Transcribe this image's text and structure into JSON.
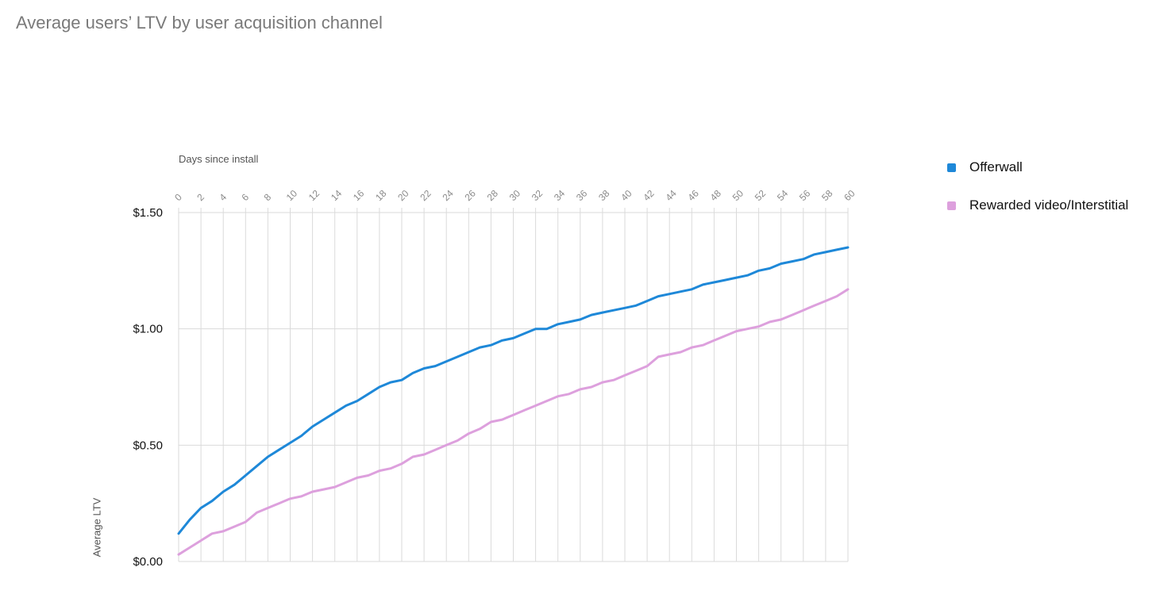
{
  "title": "Average users’ LTV by user acquisition channel",
  "chart_data": {
    "type": "line",
    "title": "Average users’ LTV by user acquisition channel",
    "xlabel": "Days since install",
    "ylabel": "Average LTV",
    "xlim": [
      0,
      60
    ],
    "ylim": [
      0,
      1.5
    ],
    "x_tick_values": [
      0,
      2,
      4,
      6,
      8,
      10,
      12,
      14,
      16,
      18,
      20,
      22,
      24,
      26,
      28,
      30,
      32,
      34,
      36,
      38,
      40,
      42,
      44,
      46,
      48,
      50,
      52,
      54,
      56,
      58,
      60
    ],
    "x_tick_labels": [
      "0",
      "2",
      "4",
      "6",
      "8",
      "10",
      "12",
      "14",
      "16",
      "18",
      "20",
      "22",
      "24",
      "26",
      "28",
      "30",
      "32",
      "34",
      "36",
      "38",
      "40",
      "42",
      "44",
      "46",
      "48",
      "50",
      "52",
      "54",
      "56",
      "58",
      "60"
    ],
    "y_tick_values": [
      0,
      0.5,
      1.0,
      1.5
    ],
    "y_tick_labels": [
      "$0.00",
      "$0.50",
      "$1.00",
      "$1.50"
    ],
    "x_axis_position": "top",
    "grid": true,
    "legend_position": "right",
    "x": [
      0,
      1,
      2,
      3,
      4,
      5,
      6,
      7,
      8,
      9,
      10,
      11,
      12,
      13,
      14,
      15,
      16,
      17,
      18,
      19,
      20,
      21,
      22,
      23,
      24,
      25,
      26,
      27,
      28,
      29,
      30,
      31,
      32,
      33,
      34,
      35,
      36,
      37,
      38,
      39,
      40,
      41,
      42,
      43,
      44,
      45,
      46,
      47,
      48,
      49,
      50,
      51,
      52,
      53,
      54,
      55,
      56,
      57,
      58,
      59,
      60
    ],
    "series": [
      {
        "name": "Offerwall",
        "color": "#1E88D8",
        "values": [
          0.12,
          0.18,
          0.23,
          0.26,
          0.3,
          0.33,
          0.37,
          0.41,
          0.45,
          0.48,
          0.51,
          0.54,
          0.58,
          0.61,
          0.64,
          0.67,
          0.69,
          0.72,
          0.75,
          0.77,
          0.78,
          0.81,
          0.83,
          0.84,
          0.86,
          0.88,
          0.9,
          0.92,
          0.93,
          0.95,
          0.96,
          0.98,
          1.0,
          1.0,
          1.02,
          1.03,
          1.04,
          1.06,
          1.07,
          1.08,
          1.09,
          1.1,
          1.12,
          1.14,
          1.15,
          1.16,
          1.17,
          1.19,
          1.2,
          1.21,
          1.22,
          1.23,
          1.25,
          1.26,
          1.28,
          1.29,
          1.3,
          1.32,
          1.33,
          1.34,
          1.35
        ]
      },
      {
        "name": "Rewarded video/Interstitial",
        "color": "#DDA0DD",
        "values": [
          0.03,
          0.06,
          0.09,
          0.12,
          0.13,
          0.15,
          0.17,
          0.21,
          0.23,
          0.25,
          0.27,
          0.28,
          0.3,
          0.31,
          0.32,
          0.34,
          0.36,
          0.37,
          0.39,
          0.4,
          0.42,
          0.45,
          0.46,
          0.48,
          0.5,
          0.52,
          0.55,
          0.57,
          0.6,
          0.61,
          0.63,
          0.65,
          0.67,
          0.69,
          0.71,
          0.72,
          0.74,
          0.75,
          0.77,
          0.78,
          0.8,
          0.82,
          0.84,
          0.88,
          0.89,
          0.9,
          0.92,
          0.93,
          0.95,
          0.97,
          0.99,
          1.0,
          1.01,
          1.03,
          1.04,
          1.06,
          1.08,
          1.1,
          1.12,
          1.14,
          1.17
        ]
      }
    ],
    "colors": {
      "grid": "#DADADA",
      "tick_label": "#8a8a8a",
      "y_tick_label": "#111111"
    }
  }
}
